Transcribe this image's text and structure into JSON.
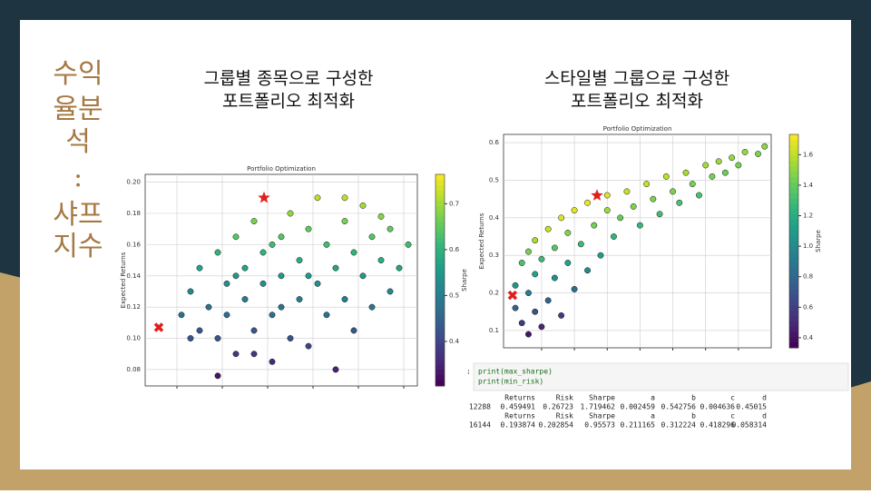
{
  "slide": {
    "title_lines": [
      "수익",
      "율분",
      "석",
      ":",
      "샤프",
      "지수"
    ],
    "left_heading": [
      "그룹별 종목으로 구성한",
      "포트폴리오 최적화"
    ],
    "right_heading": [
      "스타일별 그룹으로 구성한",
      "포트폴리오 최적화"
    ]
  },
  "chart_data": [
    {
      "type": "scatter",
      "title": "Portfolio Optimization",
      "ylabel": "Expected Returns",
      "colorbar_label": "Sharpe",
      "cmap": "viridis",
      "grid": true,
      "xlim": [
        0,
        0.3
      ],
      "xticks": [
        0.035,
        0.085,
        0.135,
        0.185,
        0.235,
        0.285
      ],
      "ylim": [
        0.0695,
        0.205
      ],
      "yticks": [
        0.08,
        {
          "value": 0.1,
          "label": "0.10"
        },
        0.12,
        0.14,
        0.16,
        0.18,
        {
          "value": 0.2,
          "label": "0.20"
        }
      ],
      "clim": [
        0.303,
        0.764
      ],
      "cticks": [
        0.4,
        0.5,
        0.6,
        0.7
      ],
      "series": [
        {
          "x": [
            0.04,
            0.05,
            0.06,
            0.06,
            0.07,
            0.08,
            0.08,
            0.09,
            0.09,
            0.1,
            0.1,
            0.11,
            0.11,
            0.12,
            0.12,
            0.13,
            0.13,
            0.14,
            0.14,
            0.15,
            0.15,
            0.16,
            0.16,
            0.17,
            0.17,
            0.18,
            0.18,
            0.19,
            0.19,
            0.2,
            0.2,
            0.21,
            0.21,
            0.22,
            0.22,
            0.23,
            0.23,
            0.24,
            0.24,
            0.25,
            0.25,
            0.26,
            0.27,
            0.27,
            0.28,
            0.29,
            0.12,
            0.1,
            0.15,
            0.18,
            0.05,
            0.08,
            0.22,
            0.26,
            0.14
          ],
          "y": [
            0.115,
            0.13,
            0.105,
            0.145,
            0.12,
            0.1,
            0.155,
            0.135,
            0.115,
            0.09,
            0.165,
            0.125,
            0.145,
            0.105,
            0.175,
            0.135,
            0.155,
            0.085,
            0.115,
            0.165,
            0.14,
            0.1,
            0.18,
            0.125,
            0.15,
            0.095,
            0.17,
            0.135,
            0.19,
            0.115,
            0.16,
            0.145,
            0.08,
            0.175,
            0.125,
            0.155,
            0.105,
            0.14,
            0.185,
            0.12,
            0.165,
            0.15,
            0.13,
            0.17,
            0.145,
            0.16,
            0.09,
            0.14,
            0.12,
            0.14,
            0.1,
            0.076,
            0.19,
            0.178,
            0.16
          ],
          "c": [
            0.47,
            0.52,
            0.43,
            0.57,
            0.48,
            0.42,
            0.6,
            0.53,
            0.47,
            0.38,
            0.64,
            0.5,
            0.57,
            0.43,
            0.67,
            0.53,
            0.6,
            0.36,
            0.47,
            0.64,
            0.55,
            0.42,
            0.69,
            0.5,
            0.59,
            0.4,
            0.65,
            0.53,
            0.72,
            0.47,
            0.62,
            0.57,
            0.35,
            0.67,
            0.5,
            0.6,
            0.43,
            0.55,
            0.7,
            0.48,
            0.64,
            0.59,
            0.52,
            0.65,
            0.57,
            0.62,
            0.38,
            0.55,
            0.48,
            0.55,
            0.42,
            0.33,
            0.72,
            0.68,
            0.62
          ]
        }
      ],
      "markers": [
        {
          "marker": "star",
          "color": "#e0201c",
          "x": 0.131,
          "y": 0.19
        },
        {
          "marker": "x",
          "color": "#e0201c",
          "x": 0.015,
          "y": 0.107
        }
      ]
    },
    {
      "type": "scatter",
      "title": "Portfolio Optimization",
      "ylabel": "Expected Returns",
      "colorbar_label": "Sharpe",
      "cmap": "viridis",
      "grid": true,
      "xlim": [
        0.196,
        0.4
      ],
      "xticks": [
        0.225,
        0.25,
        0.275,
        0.3,
        0.325,
        0.35,
        0.375
      ],
      "ylim": [
        0.054,
        0.622
      ],
      "yticks": [
        0.1,
        0.2,
        0.3,
        0.4,
        0.5,
        0.6
      ],
      "clim": [
        0.334,
        1.733
      ],
      "cticks": [
        0.4,
        0.6,
        0.8,
        {
          "value": 1,
          "label": "1.0"
        },
        1.2,
        1.4,
        1.6
      ],
      "series": [
        {
          "x": [
            0.205,
            0.205,
            0.21,
            0.21,
            0.215,
            0.215,
            0.215,
            0.22,
            0.22,
            0.22,
            0.225,
            0.225,
            0.23,
            0.23,
            0.235,
            0.235,
            0.24,
            0.24,
            0.245,
            0.245,
            0.25,
            0.25,
            0.255,
            0.26,
            0.26,
            0.265,
            0.27,
            0.275,
            0.275,
            0.28,
            0.285,
            0.29,
            0.295,
            0.3,
            0.305,
            0.31,
            0.315,
            0.32,
            0.325,
            0.33,
            0.335,
            0.34,
            0.345,
            0.35,
            0.355,
            0.36,
            0.365,
            0.37,
            0.375,
            0.38,
            0.39,
            0.395
          ],
          "y": [
            0.22,
            0.16,
            0.12,
            0.28,
            0.09,
            0.2,
            0.31,
            0.15,
            0.25,
            0.34,
            0.11,
            0.29,
            0.18,
            0.37,
            0.24,
            0.32,
            0.14,
            0.4,
            0.28,
            0.36,
            0.21,
            0.42,
            0.33,
            0.26,
            0.44,
            0.38,
            0.3,
            0.42,
            0.46,
            0.35,
            0.4,
            0.47,
            0.43,
            0.38,
            0.49,
            0.45,
            0.41,
            0.51,
            0.47,
            0.44,
            0.52,
            0.49,
            0.46,
            0.54,
            0.51,
            0.55,
            0.52,
            0.56,
            0.54,
            0.575,
            0.57,
            0.59
          ],
          "c": [
            1.07,
            0.78,
            0.57,
            1.33,
            0.42,
            0.93,
            1.44,
            0.68,
            1.14,
            1.55,
            0.49,
            1.29,
            0.78,
            1.61,
            1.02,
            1.36,
            0.58,
            1.67,
            1.14,
            1.47,
            0.84,
            1.68,
            1.29,
            1.0,
            1.69,
            1.43,
            1.11,
            1.53,
            1.67,
            1.25,
            1.4,
            1.62,
            1.46,
            1.27,
            1.61,
            1.45,
            1.3,
            1.59,
            1.45,
            1.33,
            1.55,
            1.44,
            1.33,
            1.54,
            1.44,
            1.53,
            1.42,
            1.51,
            1.44,
            1.51,
            1.46,
            1.49
          ]
        }
      ],
      "markers": [
        {
          "marker": "star",
          "color": "#e0201c",
          "x": 0.26723,
          "y": 0.459491
        },
        {
          "marker": "x",
          "color": "#e0201c",
          "x": 0.202854,
          "y": 0.193874
        }
      ]
    }
  ],
  "code": {
    "prompt": ":",
    "lines": [
      "print(max_sharpe)",
      "print(min_risk)"
    ]
  },
  "output": {
    "tables": [
      {
        "header": [
          "Returns",
          "Risk",
          "Sharpe",
          "a",
          "b",
          "c",
          "d"
        ],
        "index": 12288,
        "row": [
          0.459491,
          0.26723,
          1.719462,
          0.002459,
          0.542756,
          0.004636,
          0.45015
        ]
      },
      {
        "header": [
          "Returns",
          "Risk",
          "Sharpe",
          "a",
          "b",
          "c",
          "d"
        ],
        "index": 16144,
        "row": [
          0.193874,
          0.202854,
          0.95573,
          0.211165,
          0.312224,
          0.418296,
          0.058314
        ]
      }
    ]
  }
}
